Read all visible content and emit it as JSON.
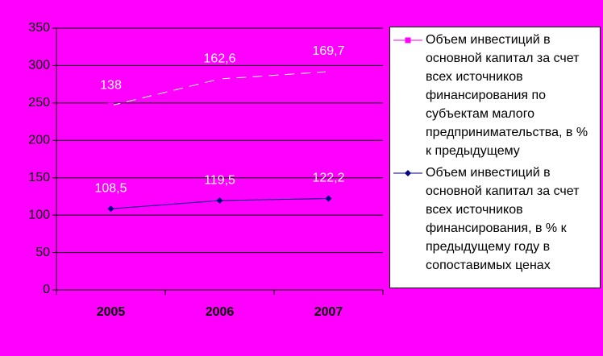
{
  "chart_data": {
    "type": "line",
    "stacked": true,
    "categories": [
      "2005",
      "2006",
      "2007"
    ],
    "series": [
      {
        "name": "Объем инвестиций в основной капитал за счет всех источников финансирования, в % к предыдущему году в сопоставимых ценах",
        "color": "#000080",
        "marker": "diamond",
        "values": [
          108.5,
          119.5,
          122.2
        ],
        "value_labels": [
          "108,5",
          "119,5",
          "122,2"
        ]
      },
      {
        "name": "Объем инвестиций в основной капитал за счет всех источников финансирования по субъектам малого предпринимательства, в % к предыдущему",
        "color": "#ff00ff",
        "marker": "square",
        "values": [
          138,
          162.6,
          169.7
        ],
        "value_labels": [
          "138",
          "162,6",
          "169,7"
        ]
      }
    ],
    "ylim": [
      0,
      350
    ],
    "yticks": [
      0,
      50,
      100,
      150,
      200,
      250,
      300,
      350
    ],
    "grid": true
  }
}
